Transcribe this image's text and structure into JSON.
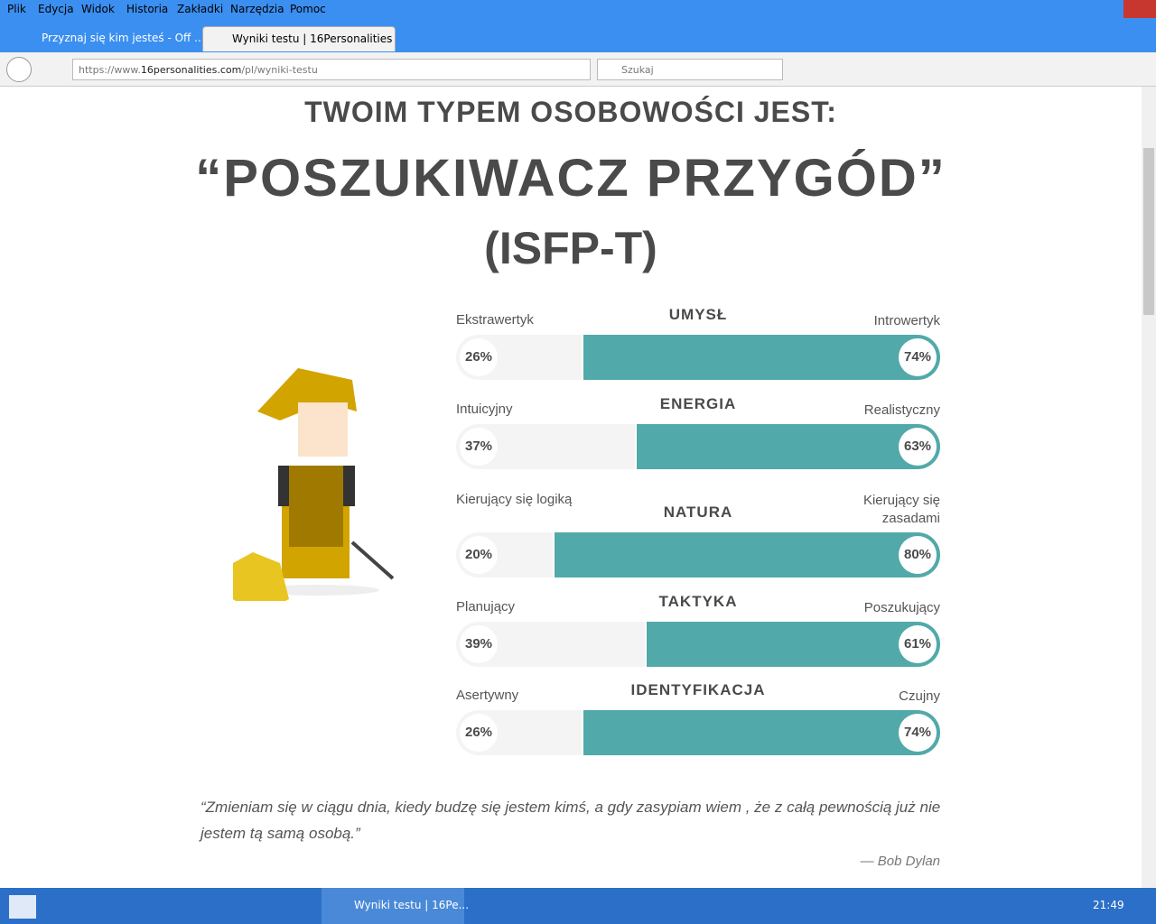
{
  "menu": [
    "Plik",
    "Edycja",
    "Widok",
    "Historia",
    "Zakładki",
    "Narzędzia",
    "Pomoc"
  ],
  "tabs": [
    "Przyznaj się kim jesteś - Off ...",
    "Wyniki testu | 16Personalities"
  ],
  "url": {
    "scheme": "https://www.",
    "domain": "16personalities.com",
    "path": "/pl/wyniki-testu"
  },
  "search_placeholder": "Szukaj",
  "heading": "TWOIM TYPEM OSOBOWOŚCI JEST:",
  "type_name": "“POSZUKIWACZ PRZYGÓD”",
  "type_code": "(ISFP-T)",
  "traits": [
    {
      "name": "UMYSŁ",
      "left_label": "Ekstrawertyk",
      "right_label": "Introwertyk",
      "left": {
        "value": 26,
        "label": "26%"
      },
      "right": {
        "value": 74,
        "label": "74%"
      }
    },
    {
      "name": "ENERGIA",
      "left_label": "Intuicyjny",
      "right_label": "Realistyczny",
      "left": {
        "value": 37,
        "label": "37%"
      },
      "right": {
        "value": 63,
        "label": "63%"
      }
    },
    {
      "name": "NATURA",
      "left_label": "Kierujący się logiką",
      "right_label": "Kierujący się zasadami",
      "left": {
        "value": 20,
        "label": "20%"
      },
      "right": {
        "value": 80,
        "label": "80%"
      }
    },
    {
      "name": "TAKTYKA",
      "left_label": "Planujący",
      "right_label": "Poszukujący",
      "left": {
        "value": 39,
        "label": "39%"
      },
      "right": {
        "value": 61,
        "label": "61%"
      }
    },
    {
      "name": "IDENTYFIKACJA",
      "left_label": "Asertywny",
      "right_label": "Czujny",
      "left": {
        "value": 26,
        "label": "26%"
      },
      "right": {
        "value": 74,
        "label": "74%"
      }
    }
  ],
  "quote": {
    "text": "“Zmieniam się w ciągu dnia, kiedy budzę się jestem kimś, a gdy zasypiam wiem , że z całą pewnością już nie jestem tą samą osobą.”",
    "author": "— Bob Dylan"
  },
  "taskbar": {
    "task": "Wyniki testu | 16Pe...",
    "clock": "21:49"
  }
}
